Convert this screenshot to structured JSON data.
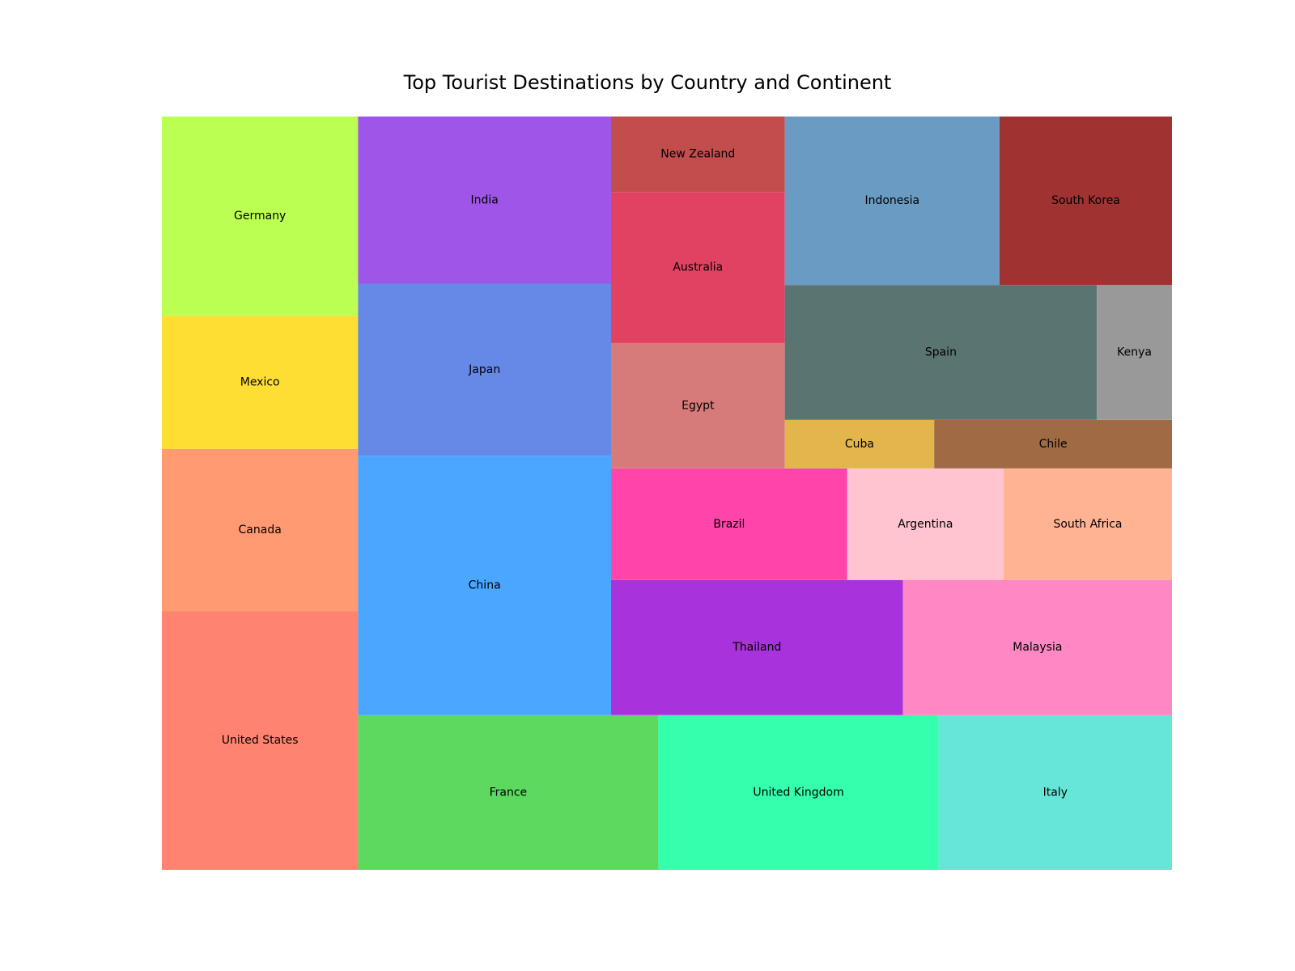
{
  "chart_data": {
    "type": "treemap",
    "title": "Top Tourist Destinations by Country and Continent",
    "xlabel": "",
    "ylabel": "",
    "grid": false,
    "xlim": [
      0,
      100
    ],
    "ylim": [
      0,
      100
    ],
    "cells": [
      {
        "label": "United States",
        "color": "#ff8370",
        "x": 0,
        "y": 0,
        "dx": 19.42,
        "dy": 34.32
      },
      {
        "label": "Canada",
        "color": "#ff9a73",
        "x": 0,
        "y": 34.32,
        "dx": 19.42,
        "dy": 21.55
      },
      {
        "label": "Mexico",
        "color": "#ffde33",
        "x": 0,
        "y": 55.87,
        "dx": 19.42,
        "dy": 17.68
      },
      {
        "label": "Germany",
        "color": "#bbff52",
        "x": 0,
        "y": 73.55,
        "dx": 19.42,
        "dy": 26.45
      },
      {
        "label": "France",
        "color": "#5cd95e",
        "x": 19.42,
        "y": 0,
        "dx": 29.73,
        "dy": 20.55
      },
      {
        "label": "United Kingdom",
        "color": "#33ffad",
        "x": 49.15,
        "y": 0,
        "dx": 27.75,
        "dy": 20.55
      },
      {
        "label": "Italy",
        "color": "#66e6d8",
        "x": 76.9,
        "y": 0,
        "dx": 23.1,
        "dy": 20.55
      },
      {
        "label": "China",
        "color": "#4ba6ff",
        "x": 19.42,
        "y": 20.55,
        "dx": 25.05,
        "dy": 34.41
      },
      {
        "label": "Japan",
        "color": "#6688e6",
        "x": 19.42,
        "y": 54.96,
        "dx": 25.05,
        "dy": 22.86
      },
      {
        "label": "India",
        "color": "#9f56e8",
        "x": 19.42,
        "y": 77.82,
        "dx": 25.05,
        "dy": 22.18
      },
      {
        "label": "Thailand",
        "color": "#a832db",
        "x": 44.47,
        "y": 20.55,
        "dx": 28.9,
        "dy": 17.93
      },
      {
        "label": "Malaysia",
        "color": "#ff87c3",
        "x": 73.37,
        "y": 20.55,
        "dx": 26.63,
        "dy": 17.93
      },
      {
        "label": "Brazil",
        "color": "#ff45aa",
        "x": 44.47,
        "y": 38.48,
        "dx": 23.38,
        "dy": 14.81
      },
      {
        "label": "Argentina",
        "color": "#ffc4d0",
        "x": 67.85,
        "y": 38.48,
        "dx": 15.48,
        "dy": 14.81
      },
      {
        "label": "South Africa",
        "color": "#ffb393",
        "x": 83.33,
        "y": 38.48,
        "dx": 16.67,
        "dy": 14.81
      },
      {
        "label": "Egypt",
        "color": "#d67b7a",
        "x": 44.47,
        "y": 53.29,
        "dx": 17.2,
        "dy": 16.64
      },
      {
        "label": "Australia",
        "color": "#e24262",
        "x": 44.47,
        "y": 69.93,
        "dx": 17.2,
        "dy": 20.06
      },
      {
        "label": "New Zealand",
        "color": "#c14d4c",
        "x": 44.47,
        "y": 89.99,
        "dx": 17.2,
        "dy": 10.01
      },
      {
        "label": "Cuba",
        "color": "#e2b64c",
        "x": 61.67,
        "y": 53.29,
        "dx": 14.79,
        "dy": 6.45
      },
      {
        "label": "Chile",
        "color": "#a06b44",
        "x": 76.46,
        "y": 53.29,
        "dx": 23.54,
        "dy": 6.45
      },
      {
        "label": "Spain",
        "color": "#5a7472",
        "x": 61.67,
        "y": 59.74,
        "dx": 30.89,
        "dy": 17.9
      },
      {
        "label": "Kenya",
        "color": "#999999",
        "x": 92.56,
        "y": 59.74,
        "dx": 7.44,
        "dy": 17.9
      },
      {
        "label": "Indonesia",
        "color": "#6a9cc3",
        "x": 61.67,
        "y": 77.64,
        "dx": 21.26,
        "dy": 22.36
      },
      {
        "label": "South Korea",
        "color": "#a03232",
        "x": 82.93,
        "y": 77.64,
        "dx": 17.07,
        "dy": 22.36
      }
    ]
  }
}
